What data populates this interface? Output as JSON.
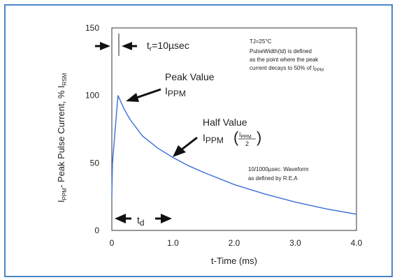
{
  "chart_data": {
    "type": "line",
    "xlabel": "t-Time (ms)",
    "ylabel": "I",
    "ylabel_sub": "PPM",
    "ylabel_mid": "- Peak Pulse Current, % I",
    "ylabel_sub2": "RSM",
    "xlim": [
      0,
      4.0
    ],
    "ylim": [
      0,
      150
    ],
    "x_ticks": [
      "0",
      "1.0",
      "2.0",
      "3.0",
      "4.0"
    ],
    "y_ticks": [
      "0",
      "50",
      "100",
      "150"
    ],
    "x_tick_values": [
      0,
      1.0,
      2.0,
      3.0,
      4.0
    ],
    "y_tick_values": [
      0,
      50,
      100,
      150
    ],
    "grid": false,
    "series": [
      {
        "color": "#3a6fd8",
        "x": [
          0,
          0.01,
          0.1,
          0.2,
          0.3,
          0.5,
          0.75,
          1.0,
          1.25,
          1.5,
          2.0,
          2.5,
          3.0,
          3.5,
          4.0
        ],
        "y": [
          25,
          50,
          100,
          90,
          82,
          70,
          61,
          54,
          48,
          43,
          34,
          27,
          21,
          16,
          12
        ]
      }
    ],
    "annotations": {
      "tr_label": "t",
      "tr_sub": "r",
      "tr_value": "=10µsec",
      "peak_title": "Peak Value",
      "peak_sym": "I",
      "peak_sub": "PPM",
      "half_title": "Half Value",
      "half_sym": "I",
      "half_sub": "PPM",
      "frac_num": "I",
      "frac_num_sub": "PPM",
      "frac_den": "2",
      "td_label": "t",
      "td_sub": "d",
      "note_line1": "TJ=25°C",
      "note_line2": "PulseWidth(td) is defined",
      "note_line3": "as the point where the peak",
      "note_line4": "current decays to 50% of I",
      "note_line4_sub": "PPM",
      "wave_line1": "10/1000µsec. Waveform",
      "wave_line2": "as defined by R.E.A"
    }
  }
}
